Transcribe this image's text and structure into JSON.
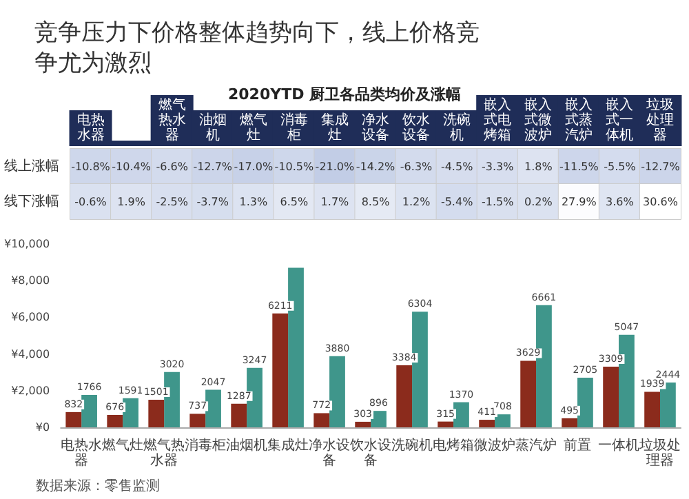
{
  "chart_data": [
    {
      "type": "heatmap",
      "title": "竞争压力下价格整体趋势向下，线上价格竞争尤为激烈",
      "subtitle": "2020YTD 厨卫各品类均价及涨幅",
      "categories": [
        "电热水器",
        null,
        "燃气热水器",
        "油烟机",
        "燃气灶",
        "消毒柜",
        "集成灶",
        "净水设备",
        "饮水设备",
        "洗碗机",
        "嵌入式电烤箱",
        "嵌入式微波炉",
        "嵌入式蒸汽炉",
        "嵌入式一体机",
        "垃圾处理器"
      ],
      "y_categories": [
        "线上涨幅",
        "线下涨幅"
      ],
      "cells": [
        [
          -10.8,
          -10.4,
          -6.6,
          -12.7,
          -17.0,
          -10.5,
          -21.0,
          -14.2,
          -6.3,
          -4.5,
          -3.3,
          1.8,
          -11.5,
          -5.5,
          -12.7
        ],
        [
          -0.6,
          1.9,
          -2.5,
          -3.7,
          1.3,
          6.5,
          1.7,
          8.5,
          1.2,
          -5.4,
          -1.5,
          0.2,
          27.9,
          3.6,
          30.6
        ]
      ],
      "cell_labels": [
        [
          "-10.8%",
          "-10.4%",
          "-6.6%",
          "-12.7%",
          "-17.0%",
          "-10.5%",
          "-21.0%",
          "-14.2%",
          "-6.3%",
          "-4.5%",
          "-3.3%",
          "1.8%",
          "-11.5%",
          "-5.5%",
          "-12.7%"
        ],
        [
          "-0.6%",
          "1.9%",
          "-2.5%",
          "-3.7%",
          "1.3%",
          "6.5%",
          "1.7%",
          "8.5%",
          "1.2%",
          "-5.4%",
          "-1.5%",
          "0.2%",
          "27.9%",
          "3.6%",
          "30.6%"
        ]
      ]
    },
    {
      "type": "bar",
      "categories": [
        "电热水器",
        "燃气灶",
        "燃气热水器",
        "消毒柜",
        "油烟机",
        "集成灶",
        "净水设备",
        "饮水设备",
        "洗碗机",
        "电烤箱",
        "微波炉",
        "蒸汽炉",
        "前置",
        "一体机",
        "垃圾处理器"
      ],
      "series": [
        {
          "color": "#8b2b1c",
          "values": [
            832,
            676,
            1501,
            737,
            1287,
            6211,
            772,
            303,
            3384,
            315,
            411,
            3629,
            495,
            3309,
            1939
          ],
          "value_labels": [
            "832",
            "676",
            "1501",
            "737",
            "1287",
            "6211",
            "772",
            "303",
            "3384",
            "315",
            "411",
            "3629",
            "495",
            "3309",
            "1939"
          ]
        },
        {
          "color": "#3f968b",
          "values": [
            1766,
            1591,
            3020,
            2047,
            3247,
            8700,
            3880,
            896,
            6304,
            1370,
            708,
            6661,
            2705,
            5047,
            2444
          ],
          "value_labels": [
            "1766",
            "1591",
            "3020",
            "2047",
            "3247",
            null,
            "3880",
            "896",
            "6304",
            "1370",
            "708",
            "6661",
            "2705",
            "5047",
            "2444"
          ]
        }
      ],
      "ylim": [
        0,
        10000
      ],
      "yticks": [
        {
          "value": 0,
          "label": "¥0"
        },
        {
          "value": 2000,
          "label": "¥2,000"
        },
        {
          "value": 4000,
          "label": "¥4,000"
        },
        {
          "value": 6000,
          "label": "¥6,000"
        },
        {
          "value": 8000,
          "label": "¥8,000"
        },
        {
          "value": 10000,
          "label": "¥10,000"
        }
      ],
      "grid": false,
      "annotations": [
        "数据来源：零售监测"
      ]
    }
  ]
}
